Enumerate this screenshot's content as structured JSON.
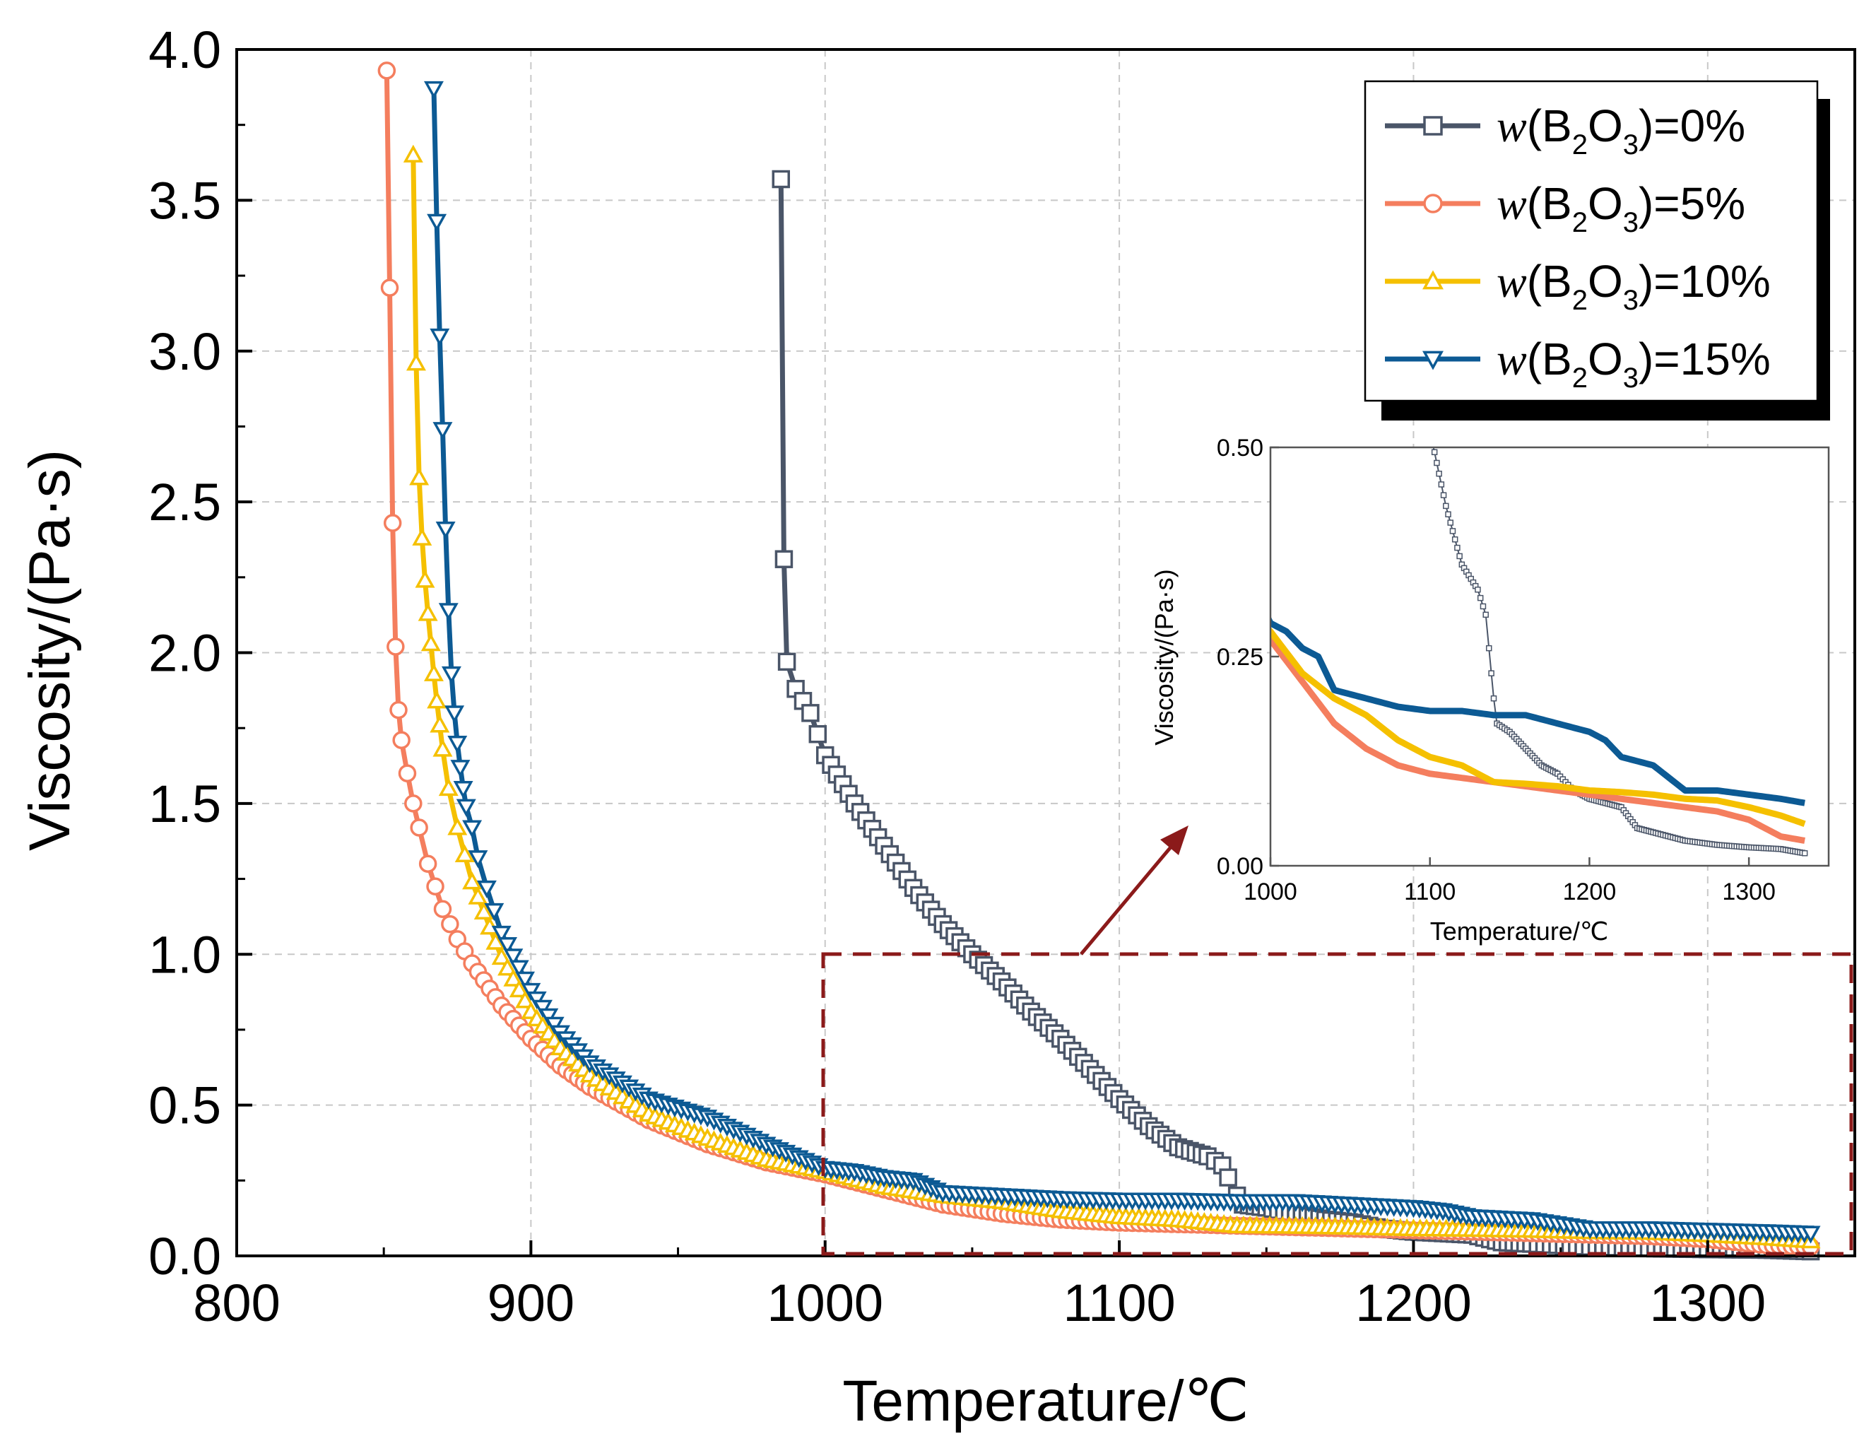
{
  "chart_data": [
    {
      "type": "line",
      "xlabel": "Temperature/℃",
      "ylabel": "Viscosity/(Pa·s)",
      "xlim": [
        800,
        1350
      ],
      "ylim": [
        0,
        4.0
      ],
      "xticks": [
        "800",
        "900",
        "1000",
        "1100",
        "1200",
        "1300"
      ],
      "yticks": [
        "0.0",
        "0.5",
        "1.0",
        "1.5",
        "2.0",
        "2.5",
        "3.0",
        "3.5",
        "4.0"
      ],
      "grid": true,
      "legend_position": "top-right",
      "series": [
        {
          "name": "w(B2O3)=0%",
          "legend_prefix": "w",
          "legend_paren": "(B",
          "legend_sub1": "2",
          "legend_mid": "O",
          "legend_sub2": "3",
          "legend_suffix": ")=0%",
          "color": "#4a5568",
          "marker": "square",
          "x": [
            985,
            986,
            987,
            990,
            995,
            1000,
            1010,
            1020,
            1030,
            1040,
            1050,
            1060,
            1070,
            1080,
            1090,
            1100,
            1110,
            1120,
            1130,
            1135,
            1137,
            1140,
            1142,
            1150,
            1160,
            1170,
            1180,
            1185,
            1190,
            1200,
            1210,
            1220,
            1230,
            1240,
            1260,
            1280,
            1300,
            1320,
            1335
          ],
          "y": [
            3.57,
            2.31,
            1.97,
            1.88,
            1.8,
            1.66,
            1.5,
            1.36,
            1.22,
            1.1,
            1.0,
            0.91,
            0.81,
            0.72,
            0.62,
            0.52,
            0.43,
            0.36,
            0.33,
            0.3,
            0.26,
            0.2,
            0.17,
            0.16,
            0.14,
            0.12,
            0.11,
            0.1,
            0.09,
            0.08,
            0.075,
            0.07,
            0.045,
            0.04,
            0.03,
            0.025,
            0.022,
            0.02,
            0.015
          ]
        },
        {
          "name": "w(B2O3)=5%",
          "legend_prefix": "w",
          "legend_paren": "(B",
          "legend_sub1": "2",
          "legend_mid": "O",
          "legend_sub2": "3",
          "legend_suffix": ")=5%",
          "color": "#f47e5e",
          "marker": "circle",
          "x": [
            851,
            852,
            853,
            854,
            855,
            856,
            858,
            860,
            862,
            865,
            870,
            875,
            880,
            890,
            900,
            910,
            920,
            940,
            960,
            980,
            1000,
            1020,
            1040,
            1060,
            1080,
            1100,
            1120,
            1140,
            1160,
            1180,
            1200,
            1220,
            1240,
            1260,
            1280,
            1300,
            1320,
            1335
          ],
          "y": [
            3.93,
            3.21,
            2.43,
            2.02,
            1.81,
            1.71,
            1.6,
            1.5,
            1.42,
            1.3,
            1.15,
            1.05,
            0.97,
            0.83,
            0.72,
            0.63,
            0.56,
            0.45,
            0.37,
            0.31,
            0.27,
            0.22,
            0.17,
            0.14,
            0.12,
            0.11,
            0.105,
            0.1,
            0.095,
            0.09,
            0.085,
            0.08,
            0.075,
            0.07,
            0.065,
            0.055,
            0.035,
            0.03
          ]
        },
        {
          "name": "w(B2O3)=10%",
          "legend_prefix": "w",
          "legend_paren": "(B",
          "legend_sub1": "2",
          "legend_mid": "O",
          "legend_sub2": "3",
          "legend_suffix": ")=10%",
          "color": "#f5c000",
          "marker": "triangle-up",
          "x": [
            860,
            861,
            862,
            863,
            864,
            865,
            866,
            867,
            868,
            869,
            870,
            872,
            875,
            880,
            890,
            900,
            910,
            920,
            940,
            960,
            980,
            1000,
            1020,
            1040,
            1060,
            1080,
            1100,
            1120,
            1140,
            1160,
            1180,
            1200,
            1220,
            1240,
            1260,
            1280,
            1300,
            1320,
            1335
          ],
          "y": [
            3.65,
            2.96,
            2.58,
            2.38,
            2.24,
            2.13,
            2.03,
            1.93,
            1.84,
            1.76,
            1.68,
            1.55,
            1.42,
            1.24,
            0.99,
            0.81,
            0.69,
            0.6,
            0.47,
            0.39,
            0.32,
            0.28,
            0.23,
            0.2,
            0.18,
            0.15,
            0.13,
            0.12,
            0.1,
            0.098,
            0.095,
            0.09,
            0.088,
            0.085,
            0.08,
            0.078,
            0.07,
            0.06,
            0.05
          ]
        },
        {
          "name": "w(B2O3)=15%",
          "legend_prefix": "w",
          "legend_paren": "(B",
          "legend_sub1": "2",
          "legend_mid": "O",
          "legend_sub2": "3",
          "legend_suffix": ")=15%",
          "color": "#0c5a94",
          "marker": "triangle-down",
          "x": [
            867,
            868,
            869,
            870,
            871,
            872,
            873,
            874,
            875,
            876,
            877,
            878,
            880,
            882,
            885,
            890,
            900,
            910,
            920,
            940,
            960,
            980,
            1000,
            1010,
            1020,
            1030,
            1040,
            1060,
            1080,
            1100,
            1120,
            1140,
            1160,
            1180,
            1200,
            1210,
            1220,
            1240,
            1260,
            1280,
            1300,
            1320,
            1335
          ],
          "y": [
            3.87,
            3.43,
            3.05,
            2.74,
            2.41,
            2.14,
            1.93,
            1.8,
            1.7,
            1.62,
            1.55,
            1.49,
            1.42,
            1.32,
            1.22,
            1.07,
            0.88,
            0.74,
            0.64,
            0.52,
            0.46,
            0.37,
            0.29,
            0.28,
            0.26,
            0.25,
            0.21,
            0.2,
            0.19,
            0.185,
            0.185,
            0.18,
            0.18,
            0.17,
            0.16,
            0.15,
            0.13,
            0.12,
            0.09,
            0.09,
            0.085,
            0.08,
            0.075
          ]
        }
      ]
    },
    {
      "type": "line",
      "role": "inset",
      "xlabel": "Temperature/℃",
      "ylabel": "Viscosity/(Pa·s)",
      "xlim": [
        1000,
        1350
      ],
      "ylim": [
        0,
        0.5
      ],
      "xticks": [
        "1000",
        "1100",
        "1200",
        "1300"
      ],
      "yticks": [
        "0.00",
        "0.25",
        "0.50"
      ],
      "grid": false
    }
  ]
}
